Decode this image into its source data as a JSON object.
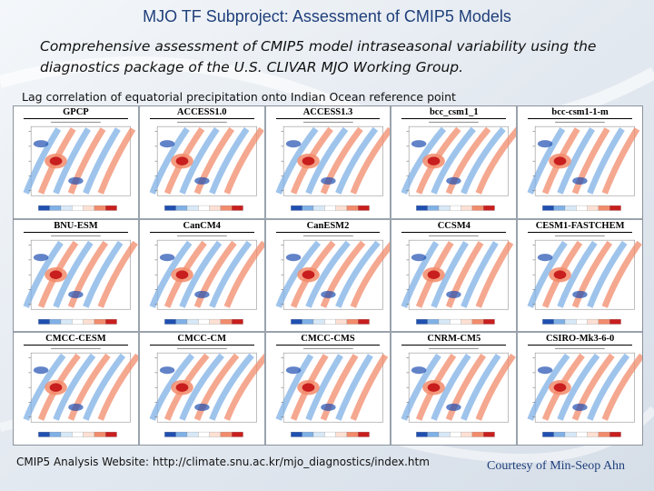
{
  "slide": {
    "title": "MJO TF Subproject: Assessment of CMIP5 Models",
    "subtitle": "Comprehensive assessment of CMIP5 model intraseasonal variability using the diagnostics package of the U.S. CLIVAR MJO Working Group.",
    "caption": "Lag correlation of equatorial precipitation onto Indian Ocean reference point",
    "footer_url": "CMIP5 Analysis Website: http://climate.snu.ac.kr/mjo_diagnostics/index.htm",
    "credit": "Courtesy of Min-Seop Ahn"
  },
  "panels": [
    {
      "label": "GPCP"
    },
    {
      "label": "ACCESS1.0"
    },
    {
      "label": "ACCESS1.3"
    },
    {
      "label": "bcc_csm1_1"
    },
    {
      "label": "bcc-csm1-1-m"
    },
    {
      "label": "BNU-ESM"
    },
    {
      "label": "CanCM4"
    },
    {
      "label": "CanESM2"
    },
    {
      "label": "CCSM4"
    },
    {
      "label": "CESM1-FASTCHEM"
    },
    {
      "label": "CMCC-CESM"
    },
    {
      "label": "CMCC-CM"
    },
    {
      "label": "CMCC-CMS"
    },
    {
      "label": "CNRM-CM5"
    },
    {
      "label": "CSIRO-Mk3-6-0"
    }
  ],
  "colors": {
    "positive_strong": "#c81e1e",
    "positive": "#f28b6b",
    "negative_strong": "#1f4fb0",
    "negative": "#7fb0e6",
    "title": "#1f3f7a"
  }
}
